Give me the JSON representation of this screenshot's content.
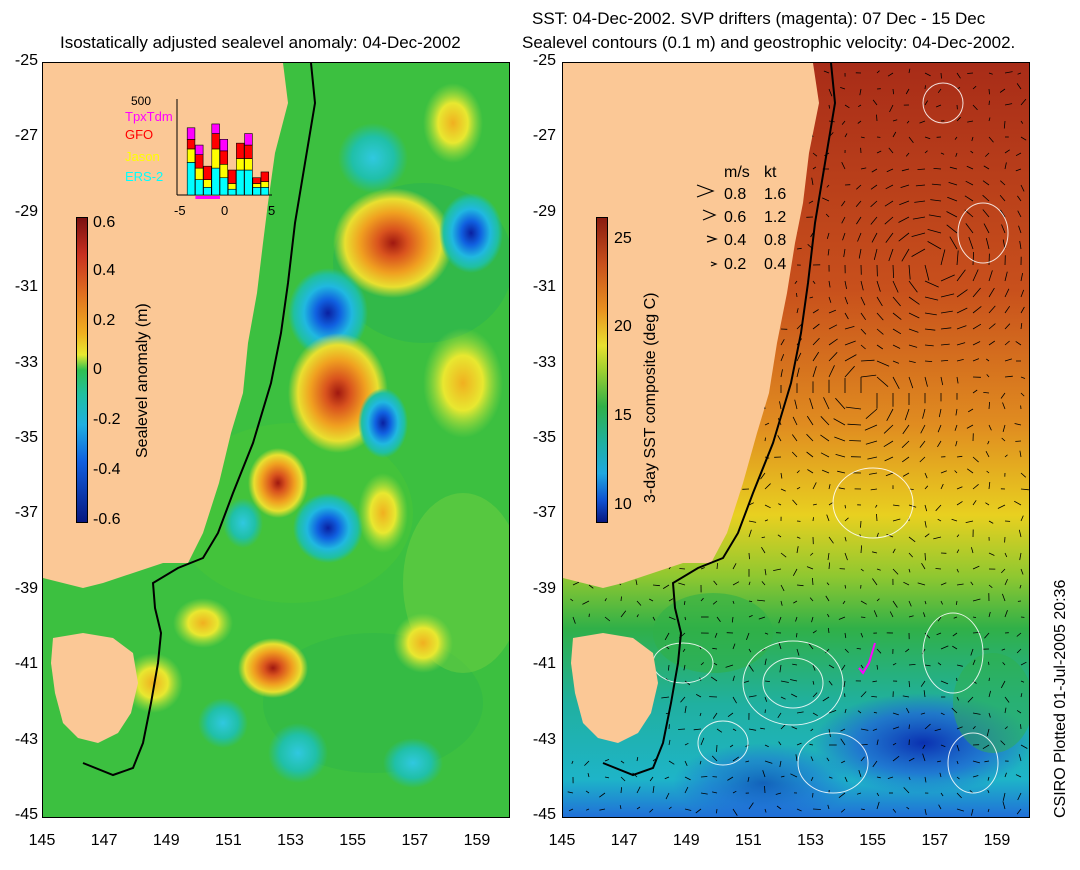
{
  "left": {
    "title": "Isostatically adjusted sealevel anomaly: 04-Dec-2002",
    "colorbar": {
      "label": "Sealevel anomaly (m)",
      "ticks": [
        "0.6",
        "0.4",
        "0.2",
        "0",
        "-0.2",
        "-0.4",
        "-0.6"
      ],
      "range": [
        -0.6,
        0.6
      ]
    },
    "inset": {
      "ymax_label": "500",
      "satellites": [
        {
          "name": "TpxTdm",
          "color": "#ff00ff"
        },
        {
          "name": "GFO",
          "color": "#ff0000"
        },
        {
          "name": "Jason",
          "color": "#ffff00"
        },
        {
          "name": "ERS-2",
          "color": "#00ffff"
        }
      ],
      "x_ticks": [
        "-5",
        "0",
        "5"
      ],
      "bars_by_day_offset": [
        {
          "day": -5,
          "TpxTdm": 0,
          "GFO": 0,
          "Jason": 0,
          "ERS-2": 0
        },
        {
          "day": -4,
          "TpxTdm": 60,
          "GFO": 50,
          "Jason": 70,
          "ERS-2": 170
        },
        {
          "day": -3,
          "TpxTdm": 50,
          "GFO": 70,
          "Jason": 60,
          "ERS-2": 80
        },
        {
          "day": -2,
          "TpxTdm": 0,
          "GFO": 70,
          "Jason": 40,
          "ERS-2": 40
        },
        {
          "day": -1,
          "TpxTdm": 50,
          "GFO": 80,
          "Jason": 100,
          "ERS-2": 140
        },
        {
          "day": 0,
          "TpxTdm": 60,
          "GFO": 70,
          "Jason": 70,
          "ERS-2": 90
        },
        {
          "day": 1,
          "TpxTdm": 0,
          "GFO": 70,
          "Jason": 30,
          "ERS-2": 30
        },
        {
          "day": 2,
          "TpxTdm": 0,
          "GFO": 80,
          "Jason": 60,
          "ERS-2": 130
        },
        {
          "day": 3,
          "TpxTdm": 60,
          "GFO": 70,
          "Jason": 60,
          "ERS-2": 130
        },
        {
          "day": 4,
          "TpxTdm": 0,
          "GFO": 30,
          "Jason": 20,
          "ERS-2": 40
        },
        {
          "day": 5,
          "TpxTdm": 0,
          "GFO": 50,
          "Jason": 30,
          "ERS-2": 40
        }
      ]
    }
  },
  "right": {
    "title_line1": "SST: 04-Dec-2002. SVP drifters (magenta): 07 Dec - 15 Dec",
    "title_line2": "Sealevel contours (0.1 m) and geostrophic velocity: 04-Dec-2002.",
    "colorbar": {
      "label": "3-day SST composite (deg C)",
      "ticks": [
        "25",
        "20",
        "15",
        "10"
      ],
      "range": [
        9,
        26
      ]
    },
    "speed_legend": {
      "header_ms": "m/s",
      "header_kt": "kt",
      "rows": [
        {
          "ms": "0.8",
          "kt": "1.6"
        },
        {
          "ms": "0.6",
          "kt": "1.2"
        },
        {
          "ms": "0.4",
          "kt": "0.8"
        },
        {
          "ms": "0.2",
          "kt": "0.4"
        }
      ]
    }
  },
  "axes": {
    "lat_ticks": [
      "-25",
      "-27",
      "-29",
      "-31",
      "-33",
      "-35",
      "-37",
      "-39",
      "-41",
      "-43",
      "-45"
    ],
    "lon_ticks": [
      "145",
      "147",
      "149",
      "151",
      "153",
      "155",
      "157",
      "159"
    ],
    "lat_range": [
      -45,
      -25
    ],
    "lon_range": [
      145,
      160
    ]
  },
  "credit": "CSIRO Plotted 01-Jul-2005 20:36",
  "colors": {
    "land": "#fbc896",
    "coastline": "#000000",
    "sla_positive": "#d9531e",
    "sla_negative": "#0a3fd6",
    "sst_warm": "#c8501c",
    "sst_cool": "#1eb4c8"
  }
}
